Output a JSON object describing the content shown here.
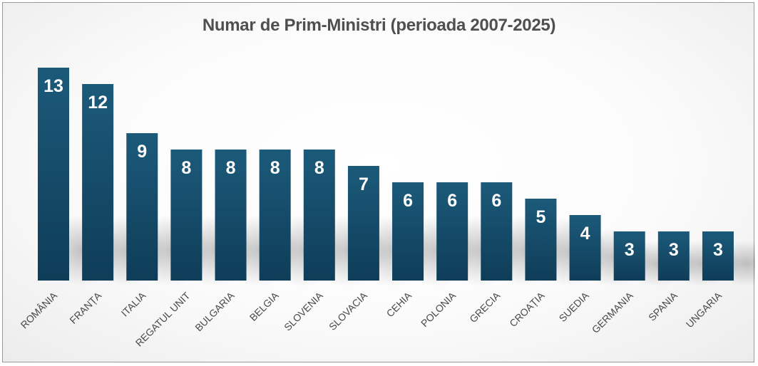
{
  "chart_data": {
    "type": "bar",
    "title": "Numar de Prim-Ministri (perioada 2007-2025)",
    "xlabel": "",
    "ylabel": "",
    "categories": [
      "ROMÂNIA",
      "FRANȚA",
      "ITALIA",
      "REGATUL UNIT",
      "BULGARIA",
      "BELGIA",
      "SLOVENIA",
      "SLOVACIA",
      "CEHIA",
      "POLONIA",
      "GRECIA",
      "CROAȚIA",
      "SUEDIA",
      "GERMANIA",
      "SPANIA",
      "UNGARIA"
    ],
    "values": [
      13,
      12,
      9,
      8,
      8,
      8,
      8,
      7,
      6,
      6,
      6,
      5,
      4,
      3,
      3,
      3
    ],
    "ylim": [
      0,
      13
    ],
    "grid": false,
    "legend": "none",
    "data_labels": "inside-top",
    "colors": {
      "bar_top": "#1c5a7a",
      "bar_bottom": "#0e3d58",
      "title": "#4f4f4f",
      "axis_label": "#4a4a4a",
      "data_label": "#ffffff"
    }
  }
}
